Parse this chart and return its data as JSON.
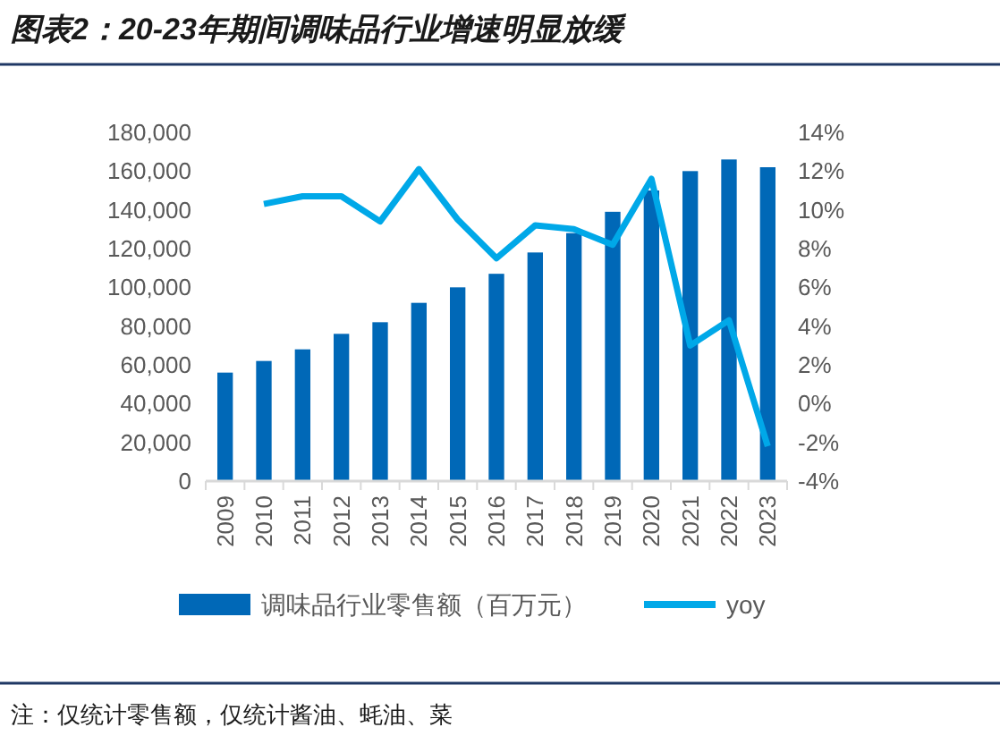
{
  "chart_data": {
    "type": "bar",
    "title": "图表2：20-23年期间调味品行业增速明显放缓",
    "categories": [
      "2009",
      "2010",
      "2011",
      "2012",
      "2013",
      "2014",
      "2015",
      "2016",
      "2017",
      "2018",
      "2019",
      "2020",
      "2021",
      "2022",
      "2023"
    ],
    "series": [
      {
        "name": "调味品行业零售额（百万元）",
        "color": "#0068b7",
        "values": [
          56000,
          62000,
          68000,
          76000,
          82000,
          92000,
          100000,
          107000,
          118000,
          128000,
          139000,
          150000,
          160000,
          166000,
          162000
        ]
      },
      {
        "name": "yoy",
        "type": "line",
        "axis": "y2",
        "color": "#00a8e8",
        "values": [
          null,
          10.3,
          10.7,
          10.7,
          9.4,
          12.1,
          9.5,
          7.5,
          9.2,
          9.0,
          8.2,
          11.6,
          3.0,
          4.3,
          -2.2
        ]
      }
    ],
    "ylim": [
      0,
      180000
    ],
    "yticks": [
      {
        "value": 0,
        "label": "0"
      },
      {
        "value": 20000,
        "label": "20,000"
      },
      {
        "value": 40000,
        "label": "40,000"
      },
      {
        "value": 60000,
        "label": "60,000"
      },
      {
        "value": 80000,
        "label": "80,000"
      },
      {
        "value": 100000,
        "label": "100,000"
      },
      {
        "value": 120000,
        "label": "120,000"
      },
      {
        "value": 140000,
        "label": "140,000"
      },
      {
        "value": 160000,
        "label": "160,000"
      },
      {
        "value": 180000,
        "label": "180,000"
      }
    ],
    "y2lim": [
      -4,
      14
    ],
    "y2ticks": [
      {
        "value": -4,
        "label": "-4%"
      },
      {
        "value": -2,
        "label": "-2%"
      },
      {
        "value": 0,
        "label": "0%"
      },
      {
        "value": 2,
        "label": "2%"
      },
      {
        "value": 4,
        "label": "4%"
      },
      {
        "value": 6,
        "label": "6%"
      },
      {
        "value": 8,
        "label": "8%"
      },
      {
        "value": 10,
        "label": "10%"
      },
      {
        "value": 12,
        "label": "12%"
      },
      {
        "value": 14,
        "label": "14%"
      }
    ],
    "legend": "bottom",
    "grid": false,
    "annotations": [
      "注：仅统计零售额，仅统计酱油、蚝油、菜"
    ]
  }
}
